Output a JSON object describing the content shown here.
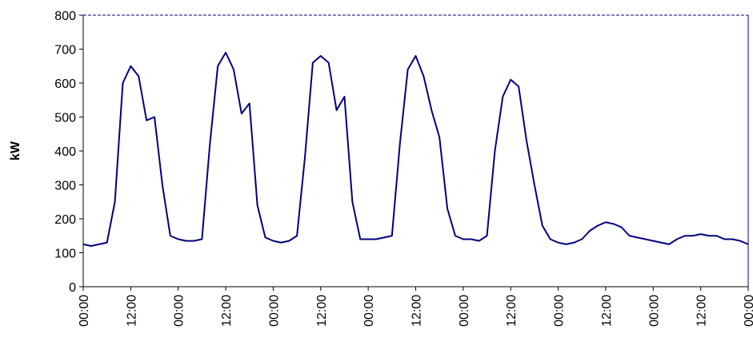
{
  "chart_data": {
    "type": "line",
    "y_label": "kW",
    "xlim": [
      0,
      168
    ],
    "ylim": [
      0,
      800
    ],
    "yticks": [
      0,
      100,
      200,
      300,
      400,
      500,
      600,
      700,
      800
    ],
    "xticks": [
      {
        "value": 0,
        "label": "00:00"
      },
      {
        "value": 12,
        "label": "12:00"
      },
      {
        "value": 24,
        "label": "00:00"
      },
      {
        "value": 36,
        "label": "12:00"
      },
      {
        "value": 48,
        "label": "00:00"
      },
      {
        "value": 60,
        "label": "12:00"
      },
      {
        "value": 72,
        "label": "00:00"
      },
      {
        "value": 84,
        "label": "12:00"
      },
      {
        "value": 96,
        "label": "00:00"
      },
      {
        "value": 108,
        "label": "12:00"
      },
      {
        "value": 120,
        "label": "00:00"
      },
      {
        "value": 132,
        "label": "12:00"
      },
      {
        "value": 144,
        "label": "00:00"
      },
      {
        "value": 156,
        "label": "12:00"
      },
      {
        "value": 168,
        "label": "00:00"
      }
    ],
    "color": "#000080",
    "x": [
      0,
      2,
      4,
      6,
      8,
      10,
      12,
      14,
      16,
      18,
      20,
      22,
      24,
      26,
      28,
      30,
      32,
      34,
      36,
      38,
      40,
      42,
      44,
      46,
      48,
      50,
      52,
      54,
      56,
      58,
      60,
      62,
      64,
      66,
      68,
      70,
      72,
      74,
      76,
      78,
      80,
      82,
      84,
      86,
      88,
      90,
      92,
      94,
      96,
      98,
      100,
      102,
      104,
      106,
      108,
      110,
      112,
      114,
      116,
      118,
      120,
      122,
      124,
      126,
      128,
      130,
      132,
      134,
      136,
      138,
      140,
      142,
      144,
      146,
      148,
      150,
      152,
      154,
      156,
      158,
      160,
      162,
      164,
      166,
      168
    ],
    "values": [
      125,
      120,
      125,
      130,
      250,
      600,
      650,
      620,
      490,
      500,
      300,
      150,
      140,
      135,
      135,
      140,
      420,
      650,
      690,
      640,
      510,
      540,
      240,
      145,
      135,
      130,
      135,
      150,
      380,
      660,
      680,
      660,
      520,
      560,
      250,
      140,
      140,
      140,
      145,
      150,
      420,
      640,
      680,
      620,
      520,
      440,
      230,
      150,
      140,
      140,
      135,
      150,
      400,
      560,
      610,
      590,
      430,
      300,
      180,
      140,
      130,
      125,
      130,
      140,
      165,
      180,
      190,
      185,
      175,
      150,
      145,
      140,
      135,
      130,
      125,
      140,
      150,
      150,
      155,
      150,
      150,
      140,
      140,
      135,
      125
    ]
  }
}
